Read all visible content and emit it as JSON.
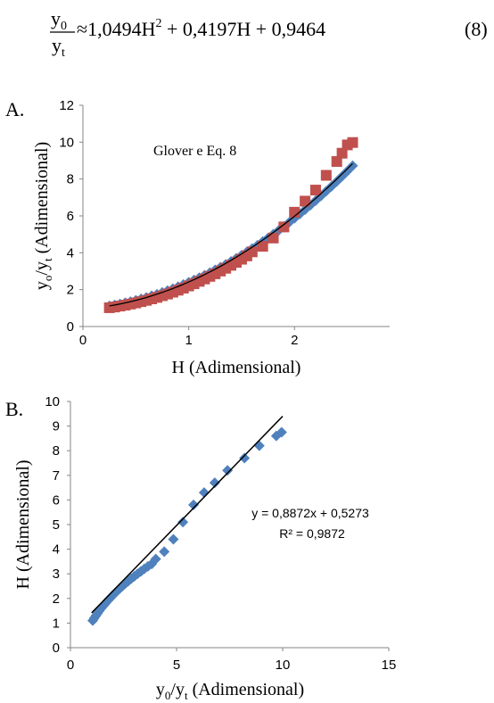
{
  "equation": {
    "numerator": "y",
    "numerator_sub": "0",
    "denominator": "y",
    "denominator_sub": "t",
    "approx": "≈",
    "rhs_part1": "1,0494H",
    "rhs_exp": "2",
    "rhs_part2": " + 0,4197H + 0,9464",
    "number": "(8)"
  },
  "chart_data": [
    {
      "panel": "A.",
      "type": "scatter",
      "annotation": "Glover e Eq. 8",
      "xlabel": "H (Adimensional)",
      "ylabel_main": "y",
      "ylabel_sub1": "o",
      "ylabel_mid": "/y",
      "ylabel_sub2": "t",
      "ylabel_tail": " (Adimensional)",
      "xlim": [
        0,
        2.9
      ],
      "ylim": [
        0,
        12
      ],
      "xticks": [
        0,
        1,
        2
      ],
      "yticks": [
        0,
        2,
        4,
        6,
        8,
        10,
        12
      ],
      "grid": false,
      "colors": {
        "series1": "#4f81bd",
        "series2": "#c0504d",
        "curve": "#000000"
      },
      "series": [
        {
          "marker": "diamond",
          "x": [
            0.25,
            0.3,
            0.35,
            0.4,
            0.45,
            0.5,
            0.55,
            0.6,
            0.65,
            0.7,
            0.75,
            0.8,
            0.85,
            0.9,
            0.95,
            1.0,
            1.05,
            1.1,
            1.15,
            1.2,
            1.25,
            1.3,
            1.35,
            1.4,
            1.45,
            1.5,
            1.55,
            1.6,
            1.65,
            1.7,
            1.75,
            1.8,
            1.85,
            1.9,
            1.95,
            2.0,
            2.05,
            2.1,
            2.15,
            2.2,
            2.25,
            2.3,
            2.35,
            2.4,
            2.45,
            2.5,
            2.55
          ],
          "y": [
            1.12,
            1.17,
            1.22,
            1.29,
            1.35,
            1.42,
            1.5,
            1.58,
            1.67,
            1.75,
            1.85,
            1.95,
            2.05,
            2.16,
            2.28,
            2.4,
            2.52,
            2.65,
            2.78,
            2.92,
            3.07,
            3.22,
            3.37,
            3.53,
            3.7,
            3.87,
            4.05,
            4.23,
            4.41,
            4.61,
            4.8,
            5.01,
            5.21,
            5.43,
            5.65,
            5.87,
            6.1,
            6.34,
            6.58,
            6.83,
            7.08,
            7.34,
            7.6,
            7.87,
            8.15,
            8.43,
            8.72
          ]
        },
        {
          "marker": "square",
          "x": [
            0.25,
            0.3,
            0.35,
            0.4,
            0.45,
            0.5,
            0.55,
            0.6,
            0.65,
            0.7,
            0.75,
            0.8,
            0.85,
            0.9,
            0.95,
            1.0,
            1.05,
            1.1,
            1.15,
            1.2,
            1.25,
            1.3,
            1.35,
            1.4,
            1.45,
            1.5,
            1.55,
            1.6,
            1.7,
            1.8,
            1.9,
            2.0,
            2.1,
            2.2,
            2.3,
            2.4,
            2.45,
            2.5,
            2.55
          ],
          "y": [
            1.02,
            1.06,
            1.11,
            1.16,
            1.22,
            1.28,
            1.35,
            1.42,
            1.5,
            1.58,
            1.67,
            1.76,
            1.86,
            1.97,
            2.08,
            2.2,
            2.32,
            2.45,
            2.58,
            2.72,
            2.86,
            3.01,
            3.16,
            3.32,
            3.48,
            3.65,
            3.83,
            4.05,
            4.35,
            4.8,
            5.4,
            6.2,
            6.8,
            7.4,
            8.2,
            8.95,
            9.4,
            9.85,
            9.98
          ]
        }
      ],
      "curve_x_range": [
        0.25,
        2.55
      ],
      "curve_coeffs": [
        1.0494,
        0.4197,
        0.9464
      ]
    },
    {
      "panel": "B.",
      "type": "scatter",
      "xlabel_main": "y",
      "xlabel_sub1": "0",
      "xlabel_mid": "/y",
      "xlabel_sub2": "t",
      "xlabel_tail": " (Adimensional)",
      "ylabel": "H (Adimensional)",
      "xlim": [
        0,
        15
      ],
      "ylim": [
        0,
        10
      ],
      "xticks": [
        0,
        5,
        10,
        15
      ],
      "yticks": [
        0,
        1,
        2,
        3,
        4,
        5,
        6,
        7,
        8,
        9,
        10
      ],
      "grid": false,
      "trendline_eq": "y = 0,8872x + 0,5273",
      "trendline_r2": "R² = 0,9872",
      "trendline_slope": 0.8872,
      "trendline_intercept": 0.5273,
      "trendline_x_range": [
        1.0,
        10.0
      ],
      "colors": {
        "points": "#4f81bd",
        "line": "#000000"
      },
      "series": [
        {
          "marker": "diamond",
          "x": [
            1.05,
            1.12,
            1.2,
            1.28,
            1.36,
            1.45,
            1.55,
            1.65,
            1.75,
            1.86,
            1.97,
            2.08,
            2.2,
            2.32,
            2.45,
            2.58,
            2.72,
            2.86,
            3.01,
            3.16,
            3.32,
            3.48,
            3.65,
            3.83,
            4.02,
            4.42,
            4.85,
            5.3,
            5.8,
            6.3,
            6.8,
            7.4,
            8.2,
            8.9,
            9.7,
            9.95
          ],
          "y": [
            1.1,
            1.2,
            1.3,
            1.4,
            1.5,
            1.6,
            1.7,
            1.8,
            1.9,
            2.0,
            2.1,
            2.2,
            2.3,
            2.4,
            2.5,
            2.6,
            2.7,
            2.8,
            2.9,
            3.0,
            3.1,
            3.2,
            3.3,
            3.4,
            3.6,
            3.9,
            4.4,
            5.1,
            5.8,
            6.3,
            6.7,
            7.2,
            7.7,
            8.2,
            8.6,
            8.75
          ]
        }
      ]
    }
  ]
}
